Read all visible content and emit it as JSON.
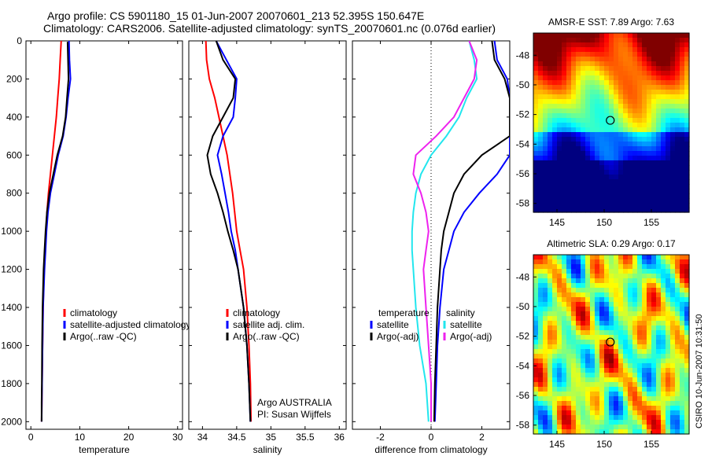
{
  "header": {
    "title_line1": "Argo profile: CS 5901180_15 01-Jun-2007 20070601_213 52.395S 150.647E",
    "title_line2": "Climatology: CARS2006. Satellite-adjusted climatology: synTS_20070601.nc (0.076d earlier)"
  },
  "side_label": "CSIRO 10-Jun-2007 10:31:50",
  "colors": {
    "red": "#ff0000",
    "blue": "#0000ff",
    "black": "#000000",
    "cyan": "#22e6ee",
    "magenta": "#ee22ee"
  },
  "chart_data": [
    {
      "type": "line",
      "xlabel": "temperature",
      "xlim": [
        -1,
        31
      ],
      "ylim": [
        2040,
        0
      ],
      "xticks": [
        0,
        10,
        20,
        30
      ],
      "yticks": [
        0,
        200,
        400,
        600,
        800,
        1000,
        1200,
        1400,
        1600,
        1800,
        2000
      ],
      "legend": {
        "placement": "lower-right",
        "entries": [
          "climatology",
          "satellite-adjusted climatology",
          "Argo(..raw -QC)"
        ]
      },
      "series": [
        {
          "name": "climatology",
          "color": "red",
          "x": [
            6.2,
            6,
            5.8,
            5.5,
            5.2,
            4.8,
            4.4,
            4.0,
            3.6,
            3.3,
            3.1,
            2.9,
            2.7,
            2.5,
            2.4,
            2.3,
            2.25,
            2.2
          ],
          "y": [
            0,
            100,
            200,
            300,
            400,
            500,
            600,
            700,
            800,
            900,
            1000,
            1100,
            1200,
            1400,
            1600,
            1800,
            1900,
            2000
          ]
        },
        {
          "name": "satellite-adjusted climatology",
          "color": "blue",
          "x": [
            7.8,
            7.9,
            8.1,
            7.6,
            7.2,
            6.6,
            5.6,
            4.8,
            4.0,
            3.5,
            3.2,
            3.0,
            2.8,
            2.5,
            2.4,
            2.3,
            2.25,
            2.2
          ],
          "y": [
            0,
            100,
            200,
            300,
            400,
            500,
            600,
            700,
            800,
            900,
            1000,
            1100,
            1200,
            1400,
            1600,
            1800,
            1900,
            2000
          ]
        },
        {
          "name": "Argo(..raw -QC)",
          "color": "black",
          "x": [
            7.5,
            7.6,
            7.7,
            7.4,
            7.1,
            6.5,
            5.4,
            4.6,
            3.8,
            3.3,
            3.0,
            2.8,
            2.6,
            2.4,
            2.3,
            2.25,
            2.2,
            2.2
          ],
          "y": [
            5,
            100,
            200,
            300,
            400,
            500,
            600,
            700,
            800,
            900,
            1000,
            1100,
            1200,
            1400,
            1600,
            1800,
            1900,
            2000
          ]
        }
      ]
    },
    {
      "type": "line",
      "xlabel": "salinity",
      "xlim": [
        33.8,
        36.1
      ],
      "ylim": [
        2040,
        0
      ],
      "xticks": [
        34,
        34.5,
        35,
        35.5,
        36
      ],
      "legend": {
        "placement": "lower-right",
        "entries": [
          "climatology",
          "satellite adj. clim.",
          "Argo(..raw -QC)"
        ]
      },
      "annotations": [
        "Argo AUSTRALIA",
        "PI: Susan Wijffels"
      ],
      "series": [
        {
          "name": "climatology",
          "color": "red",
          "x": [
            34.05,
            34.06,
            34.1,
            34.18,
            34.24,
            34.3,
            34.36,
            34.4,
            34.44,
            34.47,
            34.5,
            34.55,
            34.6,
            34.65,
            34.68,
            34.7,
            34.71
          ],
          "y": [
            0,
            100,
            200,
            300,
            400,
            500,
            600,
            700,
            800,
            900,
            1000,
            1100,
            1200,
            1400,
            1600,
            1800,
            2000
          ]
        },
        {
          "name": "satellite adj. clim.",
          "color": "blue",
          "x": [
            34.2,
            34.35,
            34.5,
            34.48,
            34.45,
            34.3,
            34.22,
            34.28,
            34.33,
            34.38,
            34.42,
            34.48,
            34.52,
            34.6,
            34.65,
            34.68,
            34.7
          ],
          "y": [
            0,
            100,
            200,
            300,
            400,
            500,
            600,
            700,
            800,
            900,
            1000,
            1100,
            1200,
            1400,
            1600,
            1800,
            2000
          ]
        },
        {
          "name": "Argo(..raw -QC)",
          "color": "black",
          "x": [
            34.2,
            34.3,
            34.48,
            34.45,
            34.3,
            34.15,
            34.07,
            34.12,
            34.22,
            34.3,
            34.37,
            34.45,
            34.52,
            34.6,
            34.65,
            34.68,
            34.7
          ],
          "y": [
            0,
            100,
            200,
            300,
            400,
            500,
            600,
            700,
            800,
            900,
            1000,
            1100,
            1200,
            1400,
            1600,
            1800,
            2000
          ]
        }
      ]
    },
    {
      "type": "line",
      "xlabel": "difference from climatology",
      "xlim": [
        -3.1,
        3.1
      ],
      "ylim": [
        2040,
        0
      ],
      "xticks": [
        -2,
        0,
        2
      ],
      "legend": {
        "placement": "lower-center",
        "groups": [
          {
            "heading": "temperature",
            "entries": [
              "satellite",
              "Argo(-adj)"
            ]
          },
          {
            "heading": "salinity",
            "entries": [
              "satellite",
              "Argo(-adj)"
            ]
          }
        ]
      },
      "series": [
        {
          "name": "temperature satellite",
          "color": "blue",
          "x": [
            2.5,
            2.6,
            3.0,
            3.1,
            3.1,
            3.1,
            3.1,
            2.6,
            1.9,
            1.3,
            0.9,
            0.7,
            0.5,
            0.35,
            0.25,
            0.2,
            0.15
          ],
          "y": [
            0,
            100,
            200,
            300,
            400,
            500,
            600,
            700,
            800,
            900,
            1000,
            1100,
            1200,
            1400,
            1600,
            1800,
            2000
          ]
        },
        {
          "name": "temperature Argo(-adj)",
          "color": "black",
          "x": [
            2.4,
            2.5,
            2.9,
            3.1,
            3.1,
            3.1,
            2.0,
            1.3,
            0.9,
            0.7,
            0.5,
            0.4,
            0.35,
            0.25,
            0.2,
            0.15,
            0.12
          ],
          "y": [
            0,
            100,
            200,
            300,
            400,
            500,
            600,
            700,
            800,
            900,
            1000,
            1100,
            1200,
            1400,
            1600,
            1800,
            2000
          ]
        },
        {
          "name": "salinity satellite",
          "color": "cyan",
          "x": [
            1.5,
            1.7,
            1.8,
            1.4,
            1.1,
            0.6,
            0.0,
            -0.4,
            -0.6,
            -0.7,
            -0.75,
            -0.75,
            -0.7,
            -0.6,
            -0.45,
            -0.2,
            -0.1
          ],
          "y": [
            0,
            100,
            200,
            300,
            400,
            500,
            600,
            700,
            800,
            900,
            1000,
            1100,
            1200,
            1400,
            1600,
            1800,
            2000
          ]
        },
        {
          "name": "salinity Argo(-adj)",
          "color": "magenta",
          "x": [
            1.5,
            1.8,
            1.7,
            1.3,
            0.9,
            0.2,
            -0.6,
            -0.7,
            -0.4,
            -0.2,
            -0.1,
            -0.2,
            -0.3,
            -0.2,
            -0.1,
            0.0,
            0.0
          ],
          "y": [
            0,
            100,
            200,
            300,
            400,
            500,
            600,
            700,
            800,
            900,
            1000,
            1100,
            1200,
            1400,
            1600,
            1800,
            2000
          ]
        }
      ]
    },
    {
      "type": "heatmap",
      "title": "AMSR-E SST: 7.89 Argo: 7.63",
      "xlim": [
        142.5,
        159
      ],
      "ylim": [
        -58.6,
        -46.5
      ],
      "xticks": [
        145,
        150,
        155
      ],
      "yticks": [
        -48,
        -50,
        -52,
        -54,
        -56,
        -58
      ],
      "marker": {
        "lon": 150.647,
        "lat": -52.395
      },
      "colormap": "jet"
    },
    {
      "type": "heatmap",
      "title": "Altimetric SLA: 0.29 Argo: 0.17",
      "xlim": [
        142.5,
        159
      ],
      "ylim": [
        -58.6,
        -46.5
      ],
      "xticks": [
        145,
        150,
        155
      ],
      "yticks": [
        -48,
        -50,
        -52,
        -54,
        -56,
        -58
      ],
      "marker": {
        "lon": 150.647,
        "lat": -52.395
      },
      "colormap": "jet"
    }
  ]
}
